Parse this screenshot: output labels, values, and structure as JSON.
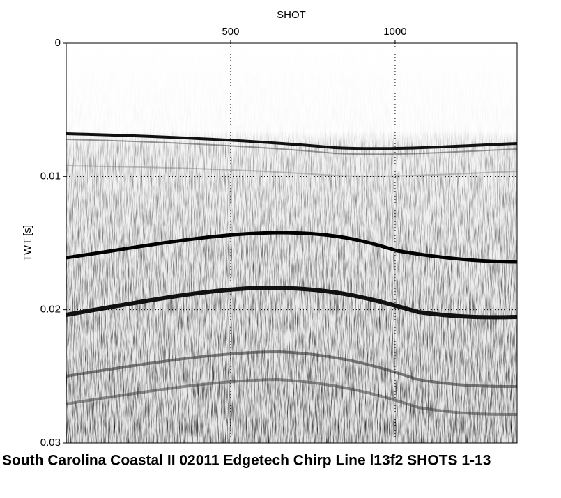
{
  "chart_data": {
    "type": "image",
    "title": "South Carolina Coastal II 02011 Edgetech Chirp Line l13f2 SHOTS 1-13",
    "xlabel": "SHOT",
    "ylabel": "TWT [s]",
    "xlim": [
      0,
      1371
    ],
    "ylim": [
      0,
      0.03
    ],
    "y_inverted": true,
    "xticks": [
      500,
      1000
    ],
    "yticks": [
      0,
      0.01,
      0.02,
      0.03
    ],
    "grid": true
  }
}
